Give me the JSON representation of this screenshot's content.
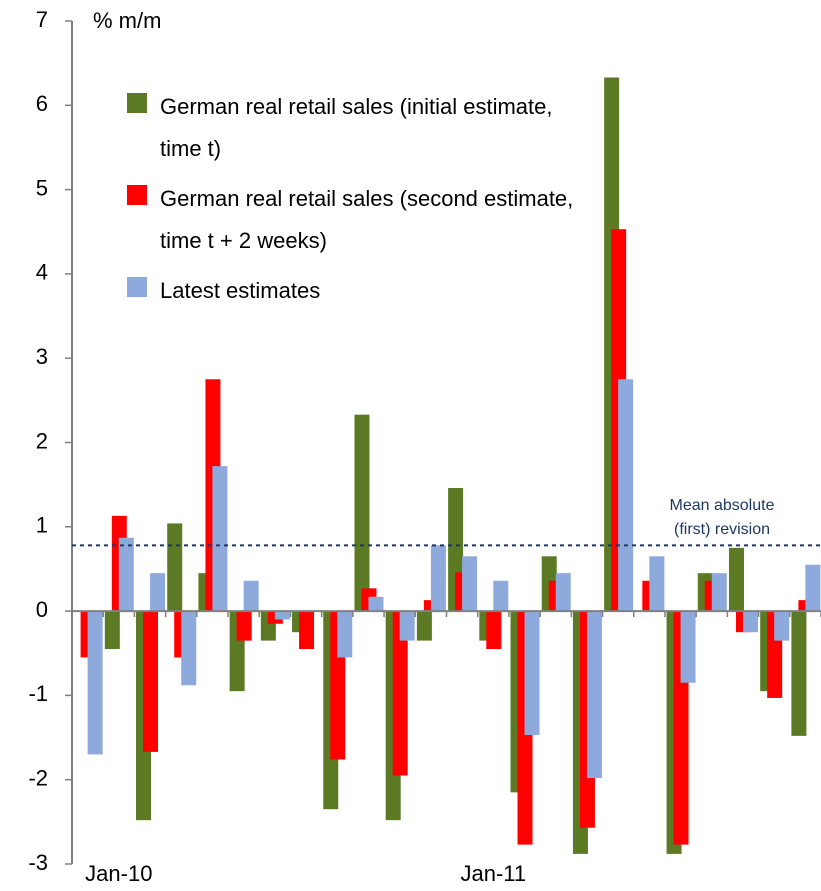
{
  "chart_data": {
    "type": "bar",
    "y_label": "% m/m",
    "categories": [
      null,
      "Jan-10",
      null,
      null,
      null,
      null,
      null,
      null,
      null,
      null,
      null,
      null,
      null,
      "Jan-11",
      null,
      null,
      null,
      null,
      null,
      null,
      null,
      null,
      null,
      null
    ],
    "series": [
      {
        "name": "German real retail sales (initial estimate, time t)",
        "color": "#5b7a23",
        "values": [
          0,
          -0.45,
          -2.48,
          1.04,
          0.45,
          -0.95,
          -0.35,
          -0.25,
          -2.35,
          2.33,
          -2.48,
          -0.35,
          1.46,
          -0.35,
          -2.15,
          0.65,
          -2.88,
          6.33,
          0,
          -2.88,
          0.45,
          0.75,
          -0.95,
          -1.48
        ]
      },
      {
        "name": "German real retail sales (second estimate, time t + 2 weeks)",
        "color": "#ff0000",
        "values": [
          -0.55,
          1.13,
          -1.67,
          -0.55,
          2.75,
          -0.35,
          -0.15,
          -0.45,
          -1.76,
          0.27,
          -1.95,
          0.13,
          0.46,
          -0.45,
          -2.77,
          0.36,
          -2.57,
          4.53,
          0.36,
          -2.77,
          0.36,
          -0.25,
          -1.03,
          0.13
        ]
      },
      {
        "name": "Latest estimates",
        "color": "#8eaadc",
        "values": [
          -1.7,
          0.87,
          0.45,
          -0.88,
          1.72,
          0.36,
          -0.1,
          0,
          -0.55,
          0.17,
          -0.35,
          0.78,
          0.65,
          0.36,
          -1.47,
          0.45,
          -1.98,
          2.75,
          0.65,
          -0.85,
          0.45,
          -0.25,
          -0.35,
          0.55
        ]
      }
    ],
    "ylim": [
      -3,
      7
    ],
    "yticks": [
      -3,
      -2,
      -1,
      0,
      1,
      2,
      3,
      4,
      5,
      6,
      7
    ],
    "reference_line": {
      "value": 0.78,
      "label": [
        "Mean absolute",
        "(first) revision"
      ],
      "color": "#1f3864"
    }
  }
}
